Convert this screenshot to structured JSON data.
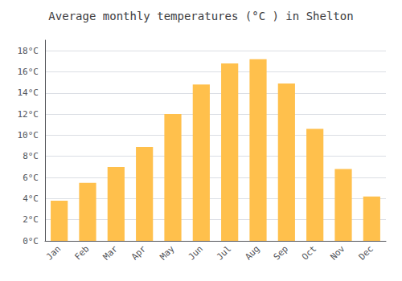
{
  "chart_data": {
    "type": "bar",
    "title": "Average monthly temperatures (°C ) in Shelton",
    "categories": [
      "Jan",
      "Feb",
      "Mar",
      "Apr",
      "May",
      "Jun",
      "Jul",
      "Aug",
      "Sep",
      "Oct",
      "Nov",
      "Dec"
    ],
    "values": [
      3.8,
      5.5,
      7.0,
      8.9,
      12.0,
      14.8,
      16.8,
      17.2,
      14.9,
      10.6,
      6.8,
      4.2
    ],
    "color": "#FFC04C",
    "ylim": [
      0,
      19
    ],
    "yticks": [
      {
        "value": 0,
        "label": "0°C"
      },
      {
        "value": 2,
        "label": "2°C"
      },
      {
        "value": 4,
        "label": "4°C"
      },
      {
        "value": 6,
        "label": "6°C"
      },
      {
        "value": 8,
        "label": "8°C"
      },
      {
        "value": 10,
        "label": "10°C"
      },
      {
        "value": 12,
        "label": "12°C"
      },
      {
        "value": 14,
        "label": "14°C"
      },
      {
        "value": 16,
        "label": "16°C"
      },
      {
        "value": 18,
        "label": "18°C"
      }
    ],
    "grid": true
  }
}
